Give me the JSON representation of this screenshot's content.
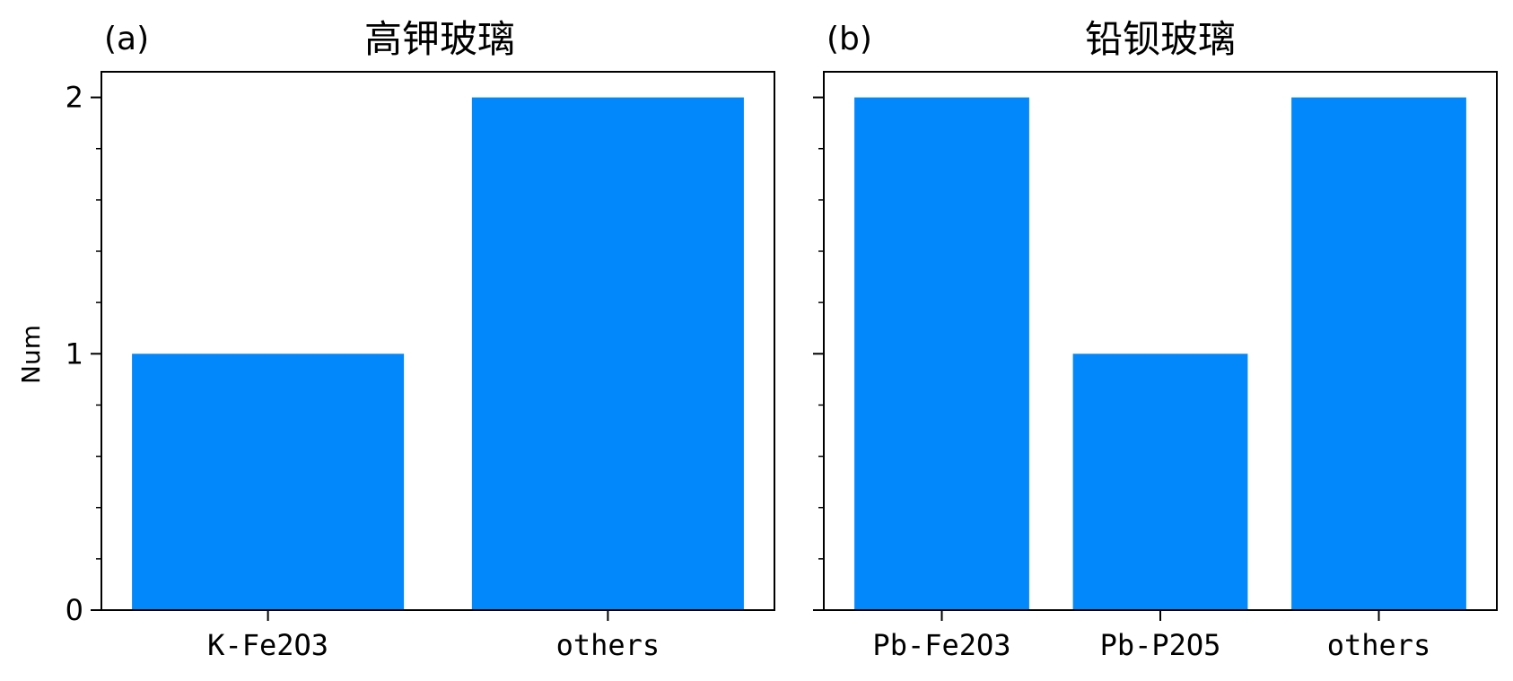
{
  "chart_data": [
    {
      "type": "bar",
      "panel_label": "(a)",
      "title": "高钾玻璃",
      "categories": [
        "K-Fe2O3",
        "others"
      ],
      "values": [
        1,
        2
      ],
      "xlabel": "",
      "ylabel": "Num",
      "ylim": [
        0,
        2.1
      ],
      "yticks": [
        "0",
        "1",
        "2"
      ],
      "color": "#0388FC",
      "grid": false,
      "legend": "none"
    },
    {
      "type": "bar",
      "panel_label": "(b)",
      "title": "铅钡玻璃",
      "categories": [
        "Pb-Fe2O3",
        "Pb-P2O5",
        "others"
      ],
      "values": [
        2,
        1,
        2
      ],
      "xlabel": "",
      "ylabel": "",
      "ylim": [
        0,
        2.1
      ],
      "yticks": [
        "",
        "",
        ""
      ],
      "color": "#0388FC",
      "grid": false,
      "legend": "none"
    }
  ]
}
